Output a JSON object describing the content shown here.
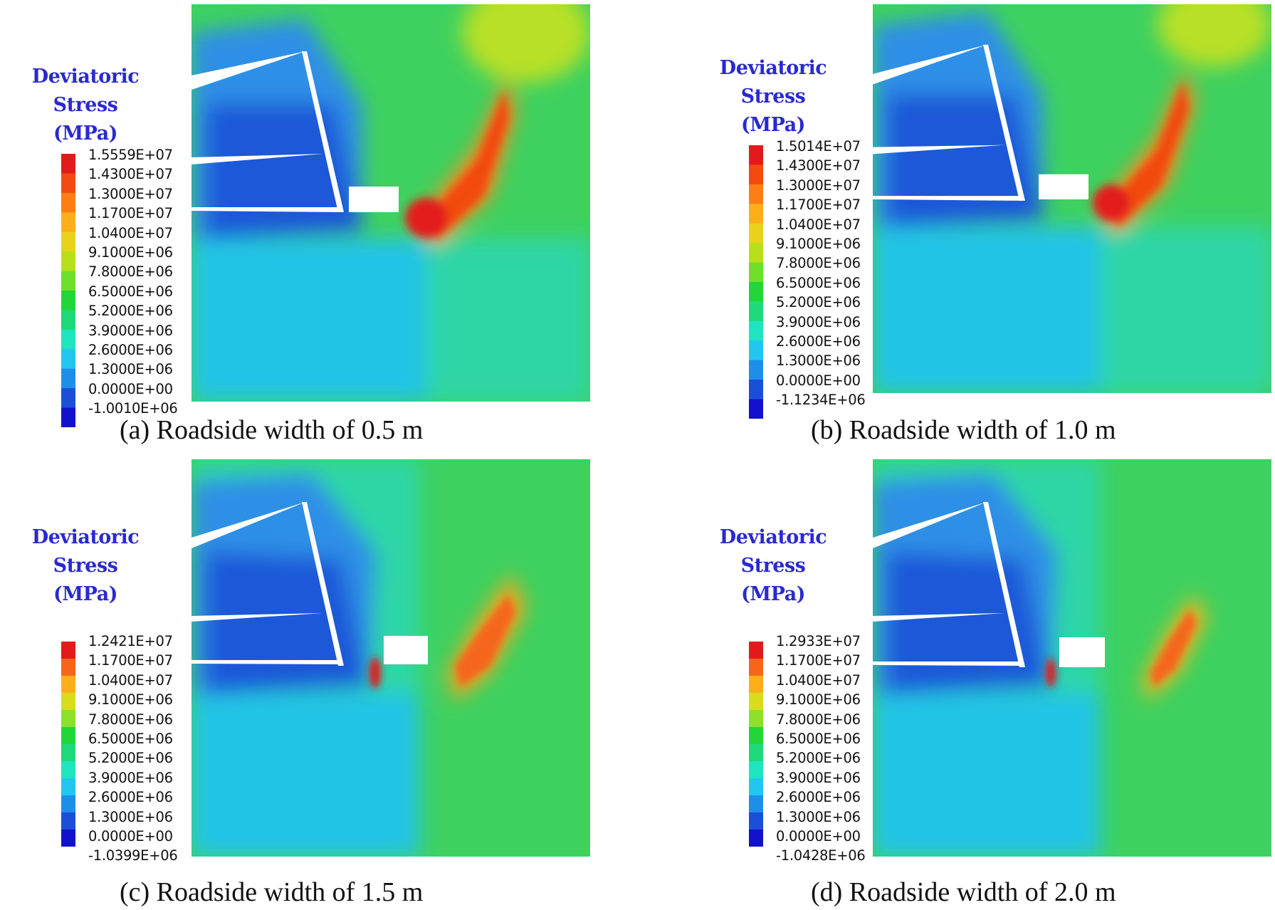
{
  "panels": [
    {
      "id": "a",
      "caption": "(a) Roadside width of 0.5 m",
      "legend_title_line1": "Deviatoric Stress",
      "legend_title_line2": "(MPa)",
      "legend_values": [
        "1.5559E+07",
        "1.4300E+07",
        "1.3000E+07",
        "1.1700E+07",
        "1.0400E+07",
        "9.1000E+06",
        "7.8000E+06",
        "6.5000E+06",
        "5.2000E+06",
        "3.9000E+06",
        "2.6000E+06",
        "1.3000E+06",
        "0.0000E+00",
        "-1.0010E+06"
      ]
    },
    {
      "id": "b",
      "caption": "(b) Roadside width of 1.0 m",
      "legend_title_line1": "Deviatoric Stress",
      "legend_title_line2": "(MPa)",
      "legend_values": [
        "1.5014E+07",
        "1.4300E+07",
        "1.3000E+07",
        "1.1700E+07",
        "1.0400E+07",
        "9.1000E+06",
        "7.8000E+06",
        "6.5000E+06",
        "5.2000E+06",
        "3.9000E+06",
        "2.6000E+06",
        "1.3000E+06",
        "0.0000E+00",
        "-1.1234E+06"
      ]
    },
    {
      "id": "c",
      "caption": "(c) Roadside width of 1.5 m",
      "legend_title_line1": "Deviatoric Stress",
      "legend_title_line2": "(MPa)",
      "legend_values": [
        "1.2421E+07",
        "1.1700E+07",
        "1.0400E+07",
        "9.1000E+06",
        "7.8000E+06",
        "6.5000E+06",
        "5.2000E+06",
        "3.9000E+06",
        "2.6000E+06",
        "1.3000E+06",
        "0.0000E+00",
        "-1.0399E+06"
      ]
    },
    {
      "id": "d",
      "caption": "(d) Roadside width of 2.0 m",
      "legend_title_line1": "Deviatoric Stress",
      "legend_title_line2": "(MPa)",
      "legend_values": [
        "1.2933E+07",
        "1.1700E+07",
        "1.0400E+07",
        "9.1000E+06",
        "7.8000E+06",
        "6.5000E+06",
        "5.2000E+06",
        "3.9000E+06",
        "2.6000E+06",
        "1.3000E+06",
        "0.0000E+00",
        "-1.0428E+06"
      ]
    }
  ],
  "colors": {
    "legend_title": "#2a2ad0",
    "scale_14": [
      "#e31a1c",
      "#f24a10",
      "#fd7e14",
      "#fdae1a",
      "#e8d21c",
      "#b8e01a",
      "#6fe02a",
      "#22d638",
      "#1fd97a",
      "#1fe4c0",
      "#22c7f0",
      "#1e8fe8",
      "#1a50d8",
      "#1212cc"
    ],
    "scale_12": [
      "#e31a1c",
      "#f5661a",
      "#fdae1a",
      "#d8dc1c",
      "#8fe02a",
      "#22d638",
      "#1fd97a",
      "#1fe4c0",
      "#22c7f0",
      "#1e8fe8",
      "#1a50d8",
      "#1212cc"
    ]
  }
}
